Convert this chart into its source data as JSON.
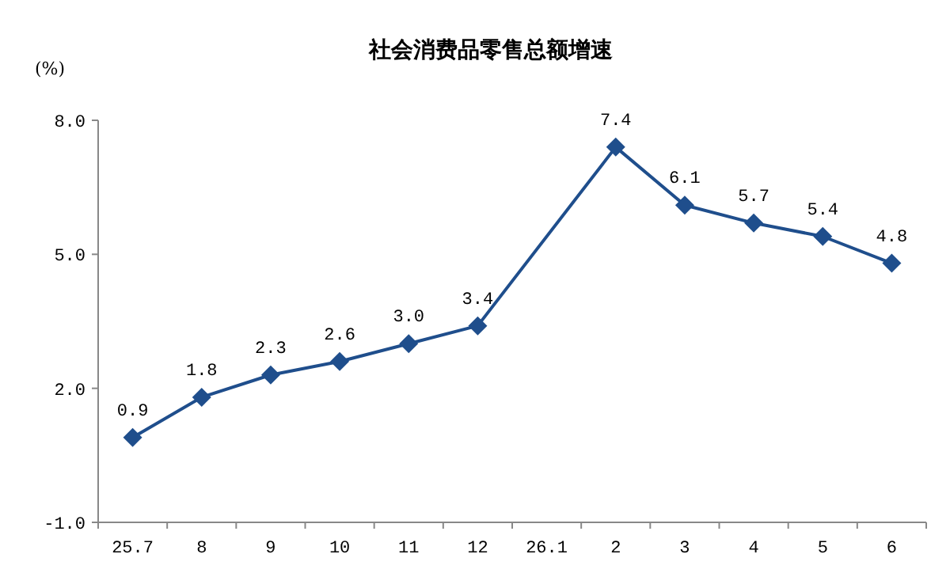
{
  "chart_data": {
    "type": "line",
    "title": "社会消费品零售总额增速",
    "ylabel": "(%)",
    "categories": [
      "25.7",
      "8",
      "9",
      "10",
      "11",
      "12",
      "26.1",
      "2",
      "3",
      "4",
      "5",
      "6"
    ],
    "series": [
      {
        "color": "#1f4e8c",
        "values": [
          0.9,
          1.8,
          2.3,
          2.6,
          3.0,
          3.4,
          null,
          7.4,
          6.1,
          5.7,
          5.4,
          4.8
        ],
        "value_labels": [
          "0.9",
          "1.8",
          "2.3",
          "2.6",
          "3.0",
          "3.4",
          null,
          "7.4",
          "6.1",
          "5.7",
          "5.4",
          "4.8"
        ]
      }
    ],
    "ylim": [
      -1,
      8
    ],
    "yticks": [
      {
        "value": -1,
        "label": "-1.0"
      },
      {
        "value": 2,
        "label": "2.0"
      },
      {
        "value": 5,
        "label": "5.0"
      },
      {
        "value": 8,
        "label": "8.0"
      }
    ],
    "marker": "diamond",
    "line_style": "solid"
  }
}
